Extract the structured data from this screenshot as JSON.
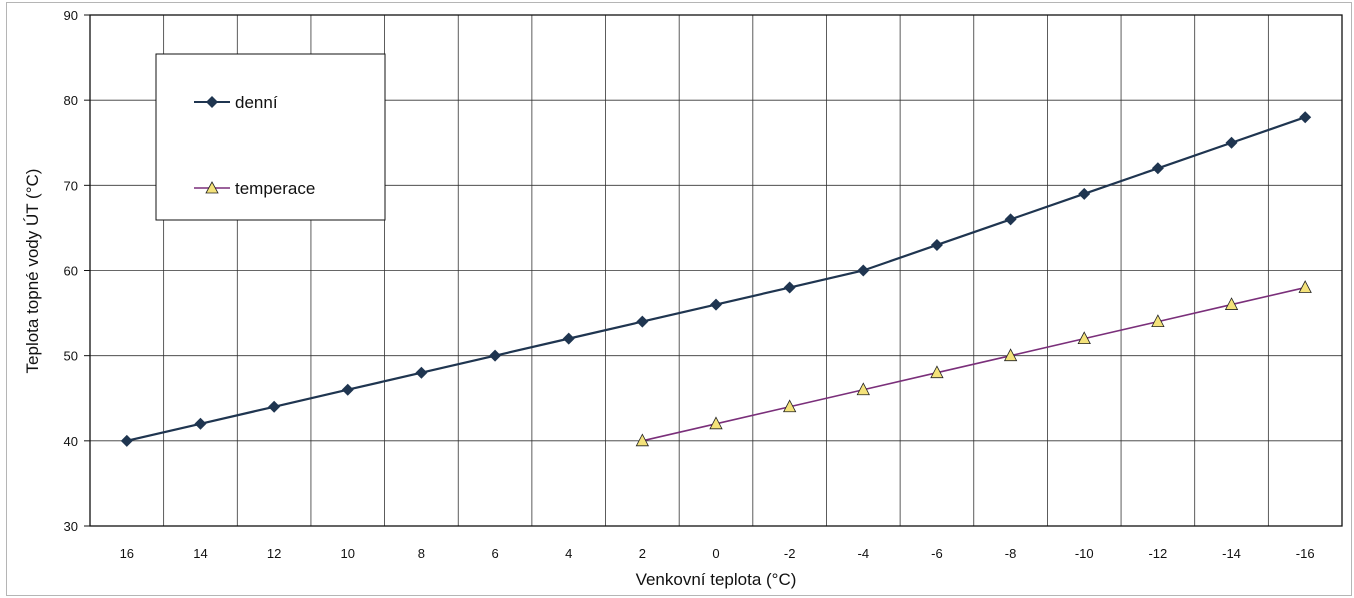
{
  "chart_data": {
    "type": "line",
    "title": "",
    "xlabel": "Venkovní teplota (°C)",
    "ylabel": "Teplota topné vody ÚT (°C)",
    "categories": [
      "16",
      "14",
      "12",
      "10",
      "8",
      "6",
      "4",
      "2",
      "0",
      "-2",
      "-4",
      "-6",
      "-8",
      "-10",
      "-12",
      "-14",
      "-16"
    ],
    "ylim": [
      30,
      90
    ],
    "yticks": [
      30,
      40,
      50,
      60,
      70,
      80,
      90
    ],
    "grid": true,
    "legend_position": "top-left",
    "series": [
      {
        "name": "denní",
        "marker": "diamond",
        "color": "#1f3550",
        "values": [
          40,
          42,
          44,
          46,
          48,
          50,
          52,
          54,
          56,
          58,
          60,
          63,
          66,
          69,
          72,
          75,
          78
        ]
      },
      {
        "name": "temperace",
        "marker": "triangle",
        "color": "#7a2f7a",
        "marker_fill": "#f4e27a",
        "values": [
          null,
          null,
          null,
          null,
          null,
          null,
          null,
          40,
          42,
          44,
          46,
          48,
          50,
          52,
          54,
          56,
          58
        ]
      }
    ]
  }
}
